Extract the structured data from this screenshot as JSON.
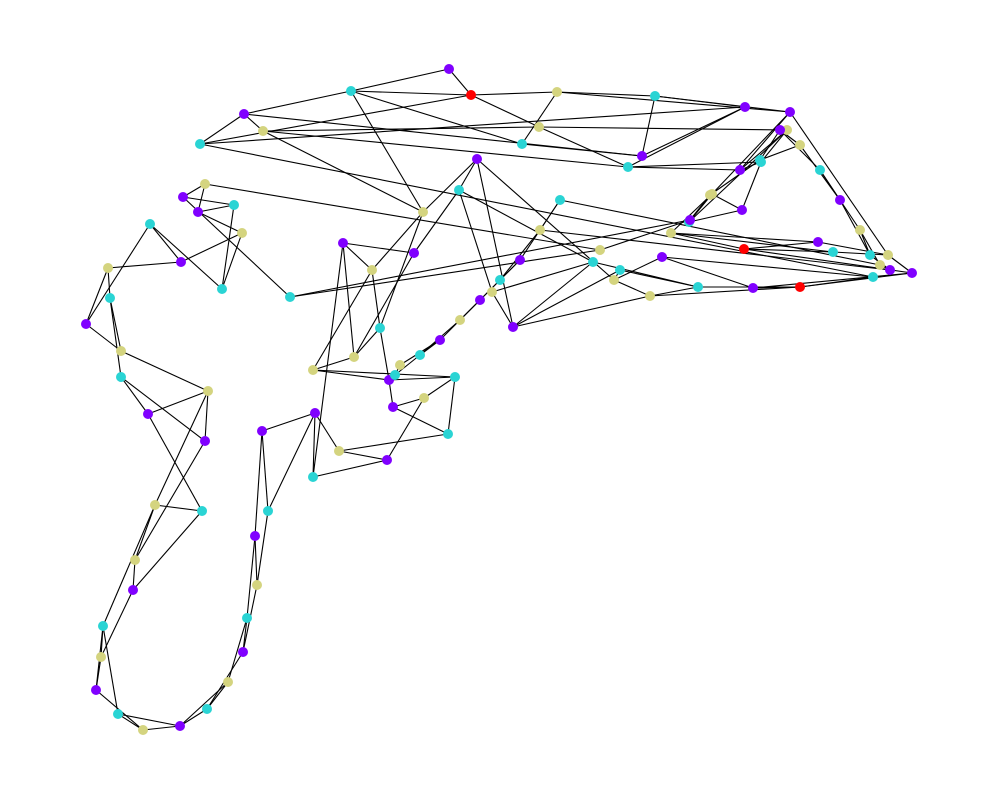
{
  "colors": {
    "background": "#ffffff",
    "edge": "#000000",
    "purple": "#8000ff",
    "cyan": "#2ad4d4",
    "olive": "#d4d47f",
    "red": "#ff0000"
  },
  "graph": {
    "nodes": [
      {
        "id": "n1",
        "color": "purple"
      },
      {
        "id": "n2",
        "color": "cyan"
      },
      {
        "id": "n3",
        "color": "red"
      },
      {
        "id": "n4",
        "color": "olive"
      },
      {
        "id": "n5",
        "color": "cyan"
      },
      {
        "id": "n6",
        "color": "purple"
      },
      {
        "id": "n7",
        "color": "cyan"
      },
      {
        "id": "n8",
        "color": "purple"
      },
      {
        "id": "n9",
        "color": "purple"
      },
      {
        "id": "n10",
        "color": "cyan"
      },
      {
        "id": "n11",
        "color": "olive"
      },
      {
        "id": "n12",
        "color": "olive"
      },
      {
        "id": "n13",
        "color": "cyan"
      },
      {
        "id": "n14",
        "color": "purple"
      },
      {
        "id": "n15",
        "color": "olive"
      },
      {
        "id": "n16",
        "color": "purple"
      },
      {
        "id": "n17",
        "color": "cyan"
      },
      {
        "id": "n18",
        "color": "olive"
      },
      {
        "id": "n19",
        "color": "purple"
      },
      {
        "id": "n20",
        "color": "cyan"
      },
      {
        "id": "n21",
        "color": "olive"
      },
      {
        "id": "n22",
        "color": "red"
      },
      {
        "id": "n23",
        "color": "purple"
      },
      {
        "id": "n24",
        "color": "cyan"
      },
      {
        "id": "n25",
        "color": "olive"
      },
      {
        "id": "n26",
        "color": "purple"
      },
      {
        "id": "n27",
        "color": "cyan"
      },
      {
        "id": "n28",
        "color": "red"
      },
      {
        "id": "n29",
        "color": "purple"
      },
      {
        "id": "n30",
        "color": "cyan"
      },
      {
        "id": "n31",
        "color": "olive"
      },
      {
        "id": "n32",
        "color": "purple"
      },
      {
        "id": "n33",
        "color": "cyan"
      },
      {
        "id": "n34",
        "color": "olive"
      },
      {
        "id": "n35",
        "color": "cyan"
      },
      {
        "id": "n36",
        "color": "purple"
      },
      {
        "id": "n37",
        "color": "olive"
      },
      {
        "id": "n38",
        "color": "purple"
      },
      {
        "id": "n39",
        "color": "cyan"
      },
      {
        "id": "n40",
        "color": "olive"
      },
      {
        "id": "n41",
        "color": "purple"
      },
      {
        "id": "n42",
        "color": "olive"
      },
      {
        "id": "n43",
        "color": "cyan"
      },
      {
        "id": "n44",
        "color": "purple"
      },
      {
        "id": "n45",
        "color": "olive"
      },
      {
        "id": "n46",
        "color": "olive"
      },
      {
        "id": "n47",
        "color": "purple"
      },
      {
        "id": "n48",
        "color": "cyan"
      },
      {
        "id": "n49",
        "color": "purple"
      },
      {
        "id": "n50",
        "color": "olive"
      },
      {
        "id": "n51",
        "color": "cyan"
      },
      {
        "id": "n52",
        "color": "purple"
      },
      {
        "id": "n53",
        "color": "olive"
      },
      {
        "id": "n54",
        "color": "cyan"
      },
      {
        "id": "n55",
        "color": "purple"
      },
      {
        "id": "n56",
        "color": "purple"
      },
      {
        "id": "n57",
        "color": "cyan"
      },
      {
        "id": "n58",
        "color": "purple"
      },
      {
        "id": "n59",
        "color": "olive"
      },
      {
        "id": "n60",
        "color": "cyan"
      },
      {
        "id": "n61",
        "color": "purple"
      },
      {
        "id": "n62",
        "color": "olive"
      },
      {
        "id": "n63",
        "color": "cyan"
      },
      {
        "id": "n64",
        "color": "purple"
      },
      {
        "id": "n65",
        "color": "olive"
      },
      {
        "id": "n66",
        "color": "cyan"
      },
      {
        "id": "n67",
        "color": "purple"
      },
      {
        "id": "n68",
        "color": "olive"
      },
      {
        "id": "n69",
        "color": "cyan"
      },
      {
        "id": "n70",
        "color": "purple"
      },
      {
        "id": "n71",
        "color": "olive"
      },
      {
        "id": "n72",
        "color": "olive"
      },
      {
        "id": "n73",
        "color": "cyan"
      },
      {
        "id": "n74",
        "color": "purple"
      },
      {
        "id": "n75",
        "color": "olive"
      },
      {
        "id": "n76",
        "color": "purple"
      },
      {
        "id": "n77",
        "color": "cyan"
      },
      {
        "id": "n78",
        "color": "olive"
      },
      {
        "id": "n79",
        "color": "cyan"
      },
      {
        "id": "n80",
        "color": "purple"
      },
      {
        "id": "n81",
        "color": "olive"
      },
      {
        "id": "n82",
        "color": "cyan"
      },
      {
        "id": "n83",
        "color": "purple"
      },
      {
        "id": "n84",
        "color": "cyan"
      },
      {
        "id": "n85",
        "color": "olive"
      },
      {
        "id": "n86",
        "color": "cyan"
      },
      {
        "id": "n87",
        "color": "purple"
      },
      {
        "id": "n88",
        "color": "purple"
      },
      {
        "id": "n89",
        "color": "olive"
      },
      {
        "id": "n90",
        "color": "cyan"
      },
      {
        "id": "n91",
        "color": "olive"
      },
      {
        "id": "n92",
        "color": "purple"
      },
      {
        "id": "n93",
        "color": "olive"
      },
      {
        "id": "n94",
        "color": "cyan"
      },
      {
        "id": "n95",
        "color": "purple"
      },
      {
        "id": "n96",
        "color": "olive"
      },
      {
        "id": "n97",
        "color": "cyan"
      },
      {
        "id": "n98",
        "color": "purple"
      },
      {
        "id": "n99",
        "color": "olive"
      },
      {
        "id": "n100",
        "color": "cyan"
      },
      {
        "id": "n101",
        "color": "olive"
      },
      {
        "id": "n102",
        "color": "purple"
      },
      {
        "id": "n103",
        "color": "cyan"
      },
      {
        "id": "n104",
        "color": "olive"
      },
      {
        "id": "n105",
        "color": "purple"
      },
      {
        "id": "n106",
        "color": "cyan"
      },
      {
        "id": "n107",
        "color": "purple"
      },
      {
        "id": "n108",
        "color": "olive"
      },
      {
        "id": "n109",
        "color": "purple"
      },
      {
        "id": "n110",
        "color": "cyan"
      },
      {
        "id": "n111",
        "color": "olive"
      },
      {
        "id": "n112",
        "color": "cyan"
      }
    ],
    "edges": [
      [
        "n1",
        "n2"
      ],
      [
        "n1",
        "n3"
      ],
      [
        "n2",
        "n3"
      ],
      [
        "n2",
        "n6"
      ],
      [
        "n2",
        "n5"
      ],
      [
        "n2",
        "n40"
      ],
      [
        "n3",
        "n4"
      ],
      [
        "n3",
        "n12"
      ],
      [
        "n3",
        "n10"
      ],
      [
        "n4",
        "n5"
      ],
      [
        "n4",
        "n14"
      ],
      [
        "n4",
        "n7"
      ],
      [
        "n5",
        "n8"
      ],
      [
        "n6",
        "n8"
      ],
      [
        "n6",
        "n10"
      ],
      [
        "n6",
        "n11"
      ],
      [
        "n7",
        "n8"
      ],
      [
        "n7",
        "n9"
      ],
      [
        "n7",
        "n14"
      ],
      [
        "n8",
        "n9"
      ],
      [
        "n9",
        "n10"
      ],
      [
        "n9",
        "n13"
      ],
      [
        "n10",
        "n27"
      ],
      [
        "n11",
        "n12"
      ],
      [
        "n11",
        "n13"
      ],
      [
        "n11",
        "n40"
      ],
      [
        "n12",
        "n13"
      ],
      [
        "n12",
        "n15"
      ],
      [
        "n13",
        "n16"
      ],
      [
        "n13",
        "n17"
      ],
      [
        "n14",
        "n16"
      ],
      [
        "n14",
        "n18"
      ],
      [
        "n14",
        "n25"
      ],
      [
        "n15",
        "n16"
      ],
      [
        "n15",
        "n17"
      ],
      [
        "n15",
        "n20"
      ],
      [
        "n16",
        "n17"
      ],
      [
        "n17",
        "n19"
      ],
      [
        "n18",
        "n19"
      ],
      [
        "n18",
        "n20"
      ],
      [
        "n18",
        "n21"
      ],
      [
        "n19",
        "n20"
      ],
      [
        "n21",
        "n22"
      ],
      [
        "n21",
        "n23"
      ],
      [
        "n21",
        "n24"
      ],
      [
        "n22",
        "n23"
      ],
      [
        "n22",
        "n24"
      ],
      [
        "n22",
        "n26"
      ],
      [
        "n23",
        "n25"
      ],
      [
        "n24",
        "n25"
      ],
      [
        "n25",
        "n26"
      ],
      [
        "n26",
        "n28"
      ],
      [
        "n26",
        "n29"
      ],
      [
        "n27",
        "n28"
      ],
      [
        "n27",
        "n32"
      ],
      [
        "n28",
        "n29"
      ],
      [
        "n28",
        "n30"
      ],
      [
        "n28",
        "n31"
      ],
      [
        "n29",
        "n32"
      ],
      [
        "n30",
        "n31"
      ],
      [
        "n30",
        "n33"
      ],
      [
        "n30",
        "n35"
      ],
      [
        "n31",
        "n34"
      ],
      [
        "n31",
        "n36"
      ],
      [
        "n32",
        "n34"
      ],
      [
        "n33",
        "n34"
      ],
      [
        "n33",
        "n36"
      ],
      [
        "n34",
        "n38"
      ],
      [
        "n35",
        "n36"
      ],
      [
        "n35",
        "n37"
      ],
      [
        "n35",
        "n39"
      ],
      [
        "n36",
        "n37"
      ],
      [
        "n36",
        "n38"
      ],
      [
        "n37",
        "n39"
      ],
      [
        "n38",
        "n39"
      ],
      [
        "n38",
        "n40"
      ],
      [
        "n39",
        "n41"
      ],
      [
        "n40",
        "n42"
      ],
      [
        "n40",
        "n43"
      ],
      [
        "n41",
        "n44"
      ],
      [
        "n41",
        "n45"
      ],
      [
        "n42",
        "n43"
      ],
      [
        "n42",
        "n44"
      ],
      [
        "n42",
        "n46"
      ],
      [
        "n43",
        "n45"
      ],
      [
        "n43",
        "n47"
      ],
      [
        "n44",
        "n45"
      ],
      [
        "n44",
        "n54"
      ],
      [
        "n45",
        "n46"
      ],
      [
        "n46",
        "n47"
      ],
      [
        "n46",
        "n48"
      ],
      [
        "n47",
        "n48"
      ],
      [
        "n47",
        "n49"
      ],
      [
        "n48",
        "n50"
      ],
      [
        "n48",
        "n51"
      ],
      [
        "n49",
        "n50"
      ],
      [
        "n49",
        "n51"
      ],
      [
        "n50",
        "n52"
      ],
      [
        "n51",
        "n53"
      ],
      [
        "n52",
        "n53"
      ],
      [
        "n52",
        "n54"
      ],
      [
        "n53",
        "n55"
      ],
      [
        "n54",
        "n55"
      ],
      [
        "n55",
        "n56"
      ],
      [
        "n55",
        "n57"
      ],
      [
        "n56",
        "n57"
      ],
      [
        "n56",
        "n58"
      ],
      [
        "n57",
        "n59"
      ],
      [
        "n58",
        "n59"
      ],
      [
        "n58",
        "n60"
      ],
      [
        "n59",
        "n61"
      ],
      [
        "n60",
        "n61"
      ],
      [
        "n60",
        "n62"
      ],
      [
        "n61",
        "n63"
      ],
      [
        "n62",
        "n63"
      ],
      [
        "n62",
        "n64"
      ],
      [
        "n63",
        "n64"
      ],
      [
        "n64",
        "n65"
      ],
      [
        "n64",
        "n66"
      ],
      [
        "n65",
        "n66"
      ],
      [
        "n65",
        "n67"
      ],
      [
        "n66",
        "n69"
      ],
      [
        "n67",
        "n68"
      ],
      [
        "n67",
        "n69"
      ],
      [
        "n68",
        "n69"
      ],
      [
        "n68",
        "n70"
      ],
      [
        "n69",
        "n72"
      ],
      [
        "n70",
        "n71"
      ],
      [
        "n70",
        "n73"
      ],
      [
        "n71",
        "n72"
      ],
      [
        "n71",
        "n74"
      ],
      [
        "n72",
        "n73"
      ],
      [
        "n72",
        "n75"
      ],
      [
        "n73",
        "n76"
      ],
      [
        "n74",
        "n75"
      ],
      [
        "n74",
        "n77"
      ],
      [
        "n75",
        "n76"
      ],
      [
        "n75",
        "n78"
      ],
      [
        "n76",
        "n77"
      ],
      [
        "n77",
        "n79"
      ],
      [
        "n78",
        "n79"
      ],
      [
        "n78",
        "n80"
      ],
      [
        "n79",
        "n81"
      ],
      [
        "n80",
        "n81"
      ],
      [
        "n80",
        "n82"
      ],
      [
        "n81",
        "n83"
      ],
      [
        "n82",
        "n83"
      ],
      [
        "n82",
        "n84"
      ],
      [
        "n83",
        "n85"
      ],
      [
        "n84",
        "n85"
      ],
      [
        "n84",
        "n86"
      ],
      [
        "n85",
        "n87"
      ],
      [
        "n86",
        "n87"
      ],
      [
        "n86",
        "n88"
      ],
      [
        "n87",
        "n89"
      ],
      [
        "n88",
        "n89"
      ],
      [
        "n88",
        "n90"
      ],
      [
        "n89",
        "n91"
      ],
      [
        "n90",
        "n91"
      ],
      [
        "n90",
        "n92"
      ],
      [
        "n91",
        "n92"
      ],
      [
        "n92",
        "n93"
      ],
      [
        "n93",
        "n94"
      ],
      [
        "n94",
        "n95"
      ],
      [
        "n94",
        "n96"
      ],
      [
        "n95",
        "n96"
      ],
      [
        "n95",
        "n97"
      ],
      [
        "n96",
        "n98"
      ],
      [
        "n97",
        "n98"
      ],
      [
        "n97",
        "n99"
      ],
      [
        "n98",
        "n100"
      ],
      [
        "n99",
        "n100"
      ],
      [
        "n99",
        "n101"
      ],
      [
        "n100",
        "n102"
      ],
      [
        "n101",
        "n102"
      ],
      [
        "n101",
        "n103"
      ],
      [
        "n102",
        "n104"
      ],
      [
        "n103",
        "n104"
      ],
      [
        "n103",
        "n105"
      ],
      [
        "n104",
        "n106"
      ],
      [
        "n105",
        "n106"
      ],
      [
        "n105",
        "n107"
      ],
      [
        "n106",
        "n108"
      ],
      [
        "n107",
        "n108"
      ],
      [
        "n107",
        "n109"
      ],
      [
        "n108",
        "n110"
      ],
      [
        "n109",
        "n110"
      ],
      [
        "n109",
        "n111"
      ],
      [
        "n110",
        "n112"
      ],
      [
        "n111",
        "n112"
      ]
    ]
  }
}
